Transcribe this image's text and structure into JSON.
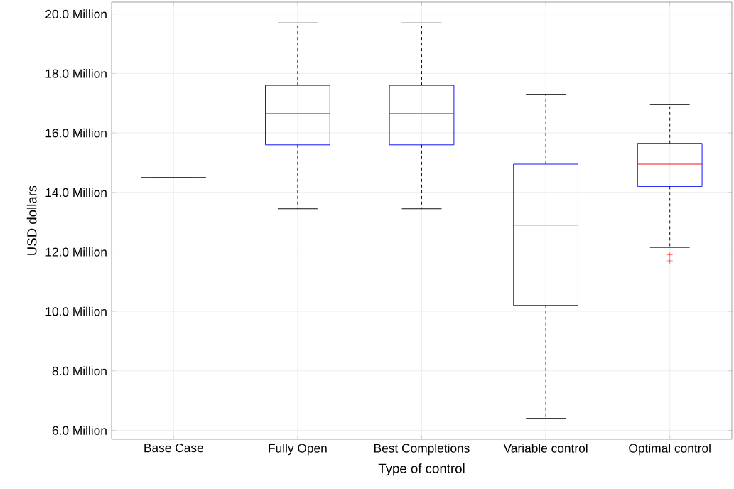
{
  "chart_data": {
    "type": "box",
    "xlabel": "Type of control",
    "ylabel": "USD dollars",
    "categories": [
      "Base Case",
      "Fully Open",
      "Best Completions",
      "Variable control",
      "Optimal control"
    ],
    "series": [
      {
        "color": "#0000ff",
        "boxes": [
          {
            "low": 14.5,
            "q1": 14.5,
            "median": 14.5,
            "q3": 14.5,
            "high": 14.5
          },
          {
            "low": 13.45,
            "q1": 15.6,
            "median": 16.65,
            "q3": 17.6,
            "high": 19.7
          },
          {
            "low": 13.45,
            "q1": 15.6,
            "median": 16.65,
            "q3": 17.6,
            "high": 19.7
          },
          {
            "low": 6.4,
            "q1": 10.2,
            "median": 12.9,
            "q3": 14.95,
            "high": 17.3
          },
          {
            "low": 12.15,
            "q1": 14.2,
            "median": 14.95,
            "q3": 15.65,
            "high": 16.95,
            "outliers": [
              11.9,
              11.7
            ]
          }
        ]
      }
    ],
    "ylim": [
      5.7,
      20.4
    ],
    "yticks": [
      {
        "value": 6,
        "label": "6.0 Million"
      },
      {
        "value": 8,
        "label": "8.0 Million"
      },
      {
        "value": 10,
        "label": "10.0 Million"
      },
      {
        "value": 12,
        "label": "12.0 Million"
      },
      {
        "value": 14,
        "label": "14.0 Million"
      },
      {
        "value": 16,
        "label": "16.0 Million"
      },
      {
        "value": 18,
        "label": "18.0 Million"
      },
      {
        "value": 20,
        "label": "20.0 Million"
      }
    ],
    "grid": true
  }
}
